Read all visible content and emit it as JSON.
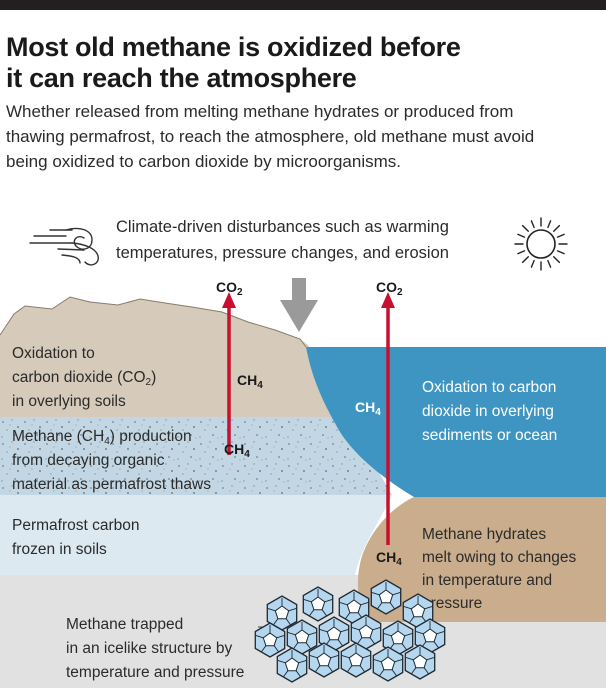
{
  "header": {
    "title_line1": "Most old methane is oxidized before",
    "title_line2": "it can reach the atmosphere",
    "subtitle_line1": "Whether released from melting methane hydrates or produced from",
    "subtitle_line2": "thawing permafrost, to reach the atmosphere, old methane must avoid",
    "subtitle_line3": "being oxidized to carbon dioxide by microorganisms."
  },
  "disturbance": {
    "line1": "Climate-driven disturbances such as warming",
    "line2": "temperatures, pressure changes, and erosion"
  },
  "chemistry": {
    "co2_base": "CO",
    "co2_sub": "2",
    "ch4_base": "CH",
    "ch4_sub": "4"
  },
  "labels": {
    "soil_oxidation": {
      "line1": "Oxidation to",
      "line2_pre": "carbon dioxide (CO",
      "line2_sub": "2",
      "line2_post": ")",
      "line3": "in overlying soils"
    },
    "methane_production": {
      "line1_pre": "Methane (CH",
      "line1_sub": "4",
      "line1_post": ") production",
      "line2": "from decaying organic",
      "line3": "material as permafrost thaws"
    },
    "permafrost": {
      "line1": "Permafrost carbon",
      "line2": "frozen in soils"
    },
    "ocean_oxidation": {
      "line1": "Oxidation to carbon",
      "line2": "dioxide in overlying",
      "line3": "sediments or ocean"
    },
    "hydrates": {
      "line1": "Methane hydrates",
      "line2": "melt owing to changes",
      "line3": "in temperature and",
      "line4": "pressure"
    },
    "trapped": {
      "line1": "Methane trapped",
      "line2": "in an icelike structure by",
      "line3": "temperature and pressure"
    }
  },
  "colors": {
    "arrow_red": "#c8102e",
    "soil_tan": "#d6cabb",
    "sediment_tan": "#c9ad8d",
    "permafrost_blue": "#c3d6e3",
    "frozen_blue": "#dce9f1",
    "ocean_blue": "#3f95c1",
    "bedrock_gray": "#e1e1e1",
    "hydrate_blue": "#b4d6ee",
    "down_arrow_gray": "#9a9a9a"
  },
  "icons": [
    "wind-icon",
    "sun-icon",
    "down-arrow-icon",
    "hydrate-cage-icon"
  ]
}
